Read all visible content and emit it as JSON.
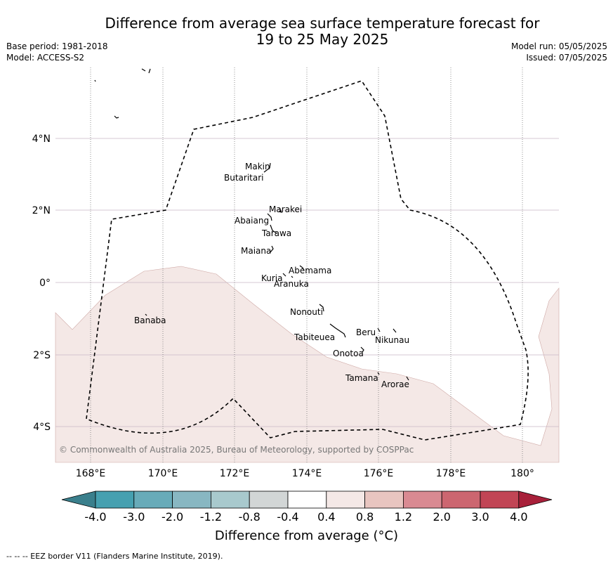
{
  "title_line1": "Difference from average sea surface temperature forecast for",
  "title_line2": "19 to 25 May 2025",
  "base_period": "Base period: 1981-2018",
  "model": "Model: ACCESS-S2",
  "model_run": "Model run: 05/05/2025",
  "issued": "Issued: 07/05/2025",
  "copyright": "© Commonwealth of Australia 2025, Bureau of Meteorology, supported by COSPPac",
  "colorbar_title": "Difference from average (°C)",
  "footer": "--  --  -- EEZ border V11 (Flanders Marine Institute, 2019).",
  "lon_labels": [
    "168°E",
    "170°E",
    "172°E",
    "174°E",
    "176°E",
    "178°E",
    "180°"
  ],
  "lat_labels": [
    "4°N",
    "2°N",
    "0°",
    "2°S",
    "4°S"
  ],
  "colorbar": {
    "ticks": [
      "-4.0",
      "-3.0",
      "-2.0",
      "-1.2",
      "-0.8",
      "-0.4",
      "0.4",
      "0.8",
      "1.2",
      "2.0",
      "3.0",
      "4.0"
    ],
    "colors": [
      "#3a7f8c",
      "#46a0b0",
      "#68abb9",
      "#88b7c2",
      "#a8c9cd",
      "#d2d6d6",
      "#ffffff",
      "#f4e8e6",
      "#e8c5c0",
      "#d98a92",
      "#cc6670",
      "#c14555",
      "#a8203a"
    ]
  },
  "islands": [
    {
      "name": "Makin"
    },
    {
      "name": "Butaritari"
    },
    {
      "name": "Marakei"
    },
    {
      "name": "Abaiang"
    },
    {
      "name": "Tarawa"
    },
    {
      "name": "Maiana"
    },
    {
      "name": "Abemama"
    },
    {
      "name": "Kuria"
    },
    {
      "name": "Aranuka"
    },
    {
      "name": "Nonouti"
    },
    {
      "name": "Banaba"
    },
    {
      "name": "Tabiteuea"
    },
    {
      "name": "Beru"
    },
    {
      "name": "Nikunau"
    },
    {
      "name": "Onotoa"
    },
    {
      "name": "Tamana"
    },
    {
      "name": "Arorae"
    }
  ]
}
